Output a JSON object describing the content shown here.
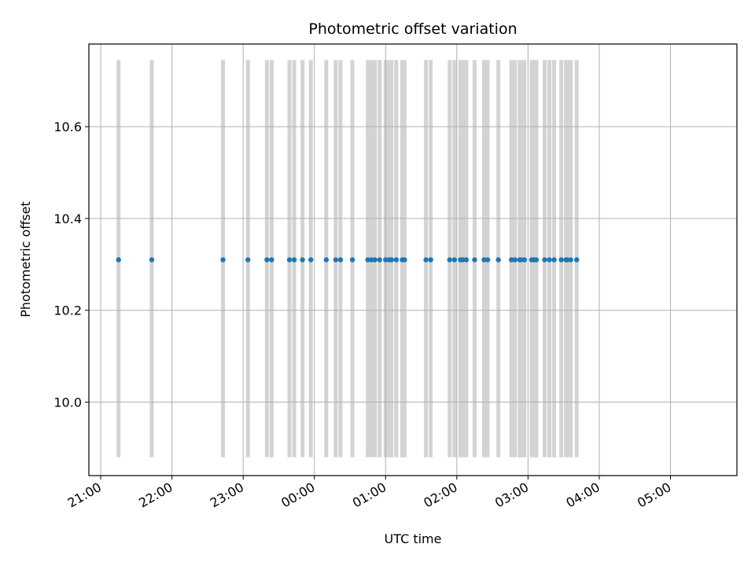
{
  "chart_data": {
    "type": "scatter",
    "title": "Photometric offset variation",
    "xlabel": "UTC time",
    "ylabel": "Photometric offset",
    "grid": true,
    "xlim": [
      "20:50",
      "05:56"
    ],
    "ylim": [
      9.84,
      10.78
    ],
    "x_ticks": [
      "21:00",
      "22:00",
      "23:00",
      "00:00",
      "01:00",
      "02:00",
      "03:00",
      "04:00",
      "05:00"
    ],
    "y_ticks": [
      "10.0",
      "10.2",
      "10.4",
      "10.6"
    ],
    "y_tick_values": [
      10.0,
      10.2,
      10.4,
      10.6
    ],
    "bands": {
      "color": "#d3d3d3",
      "y_range": [
        9.88,
        10.745
      ]
    },
    "colors": {
      "points": "#1f77b4",
      "grid": "#b0b0b0"
    },
    "series": [
      {
        "x": [
          "21:15",
          "21:43",
          "22:43",
          "23:04",
          "23:20",
          "23:24",
          "23:39",
          "23:43",
          "23:50",
          "23:57",
          "00:10",
          "00:18",
          "00:22",
          "00:32",
          "00:45",
          "00:48",
          "00:51",
          "00:55",
          "01:00",
          "01:03",
          "01:05",
          "01:09",
          "01:14",
          "01:16",
          "01:34",
          "01:38",
          "01:54",
          "01:58",
          "02:03",
          "02:05",
          "02:08",
          "02:15",
          "02:23",
          "02:26",
          "02:35",
          "02:46",
          "02:49",
          "02:53",
          "02:54",
          "02:57",
          "03:03",
          "03:05",
          "03:07",
          "03:14",
          "03:18",
          "03:22",
          "03:28",
          "03:32",
          "03:33",
          "03:36",
          "03:41"
        ],
        "y": [
          10.31,
          10.31,
          10.31,
          10.31,
          10.31,
          10.31,
          10.31,
          10.31,
          10.31,
          10.31,
          10.31,
          10.31,
          10.31,
          10.31,
          10.31,
          10.31,
          10.31,
          10.31,
          10.31,
          10.31,
          10.31,
          10.31,
          10.31,
          10.31,
          10.31,
          10.31,
          10.31,
          10.31,
          10.31,
          10.31,
          10.31,
          10.31,
          10.31,
          10.31,
          10.31,
          10.31,
          10.31,
          10.31,
          10.31,
          10.31,
          10.31,
          10.31,
          10.31,
          10.31,
          10.31,
          10.31,
          10.31,
          10.31,
          10.31,
          10.31,
          10.31
        ]
      }
    ]
  }
}
